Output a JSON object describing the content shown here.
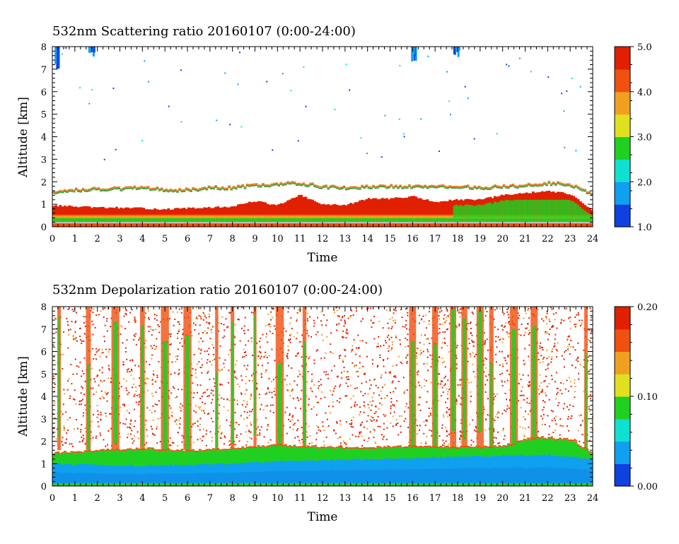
{
  "chart_data": [
    {
      "type": "heatmap",
      "title": "532nm Scattering ratio  20160107 (0:00-24:00)",
      "xlabel": "Time",
      "ylabel": "Altitude [km]",
      "xlim": [
        0,
        24
      ],
      "ylim": [
        0,
        8
      ],
      "x_ticks": [
        "0",
        "1",
        "2",
        "3",
        "4",
        "5",
        "6",
        "7",
        "8",
        "9",
        "10",
        "11",
        "12",
        "13",
        "14",
        "15",
        "16",
        "17",
        "18",
        "19",
        "20",
        "21",
        "22",
        "23",
        "24"
      ],
      "y_ticks": [
        "0",
        "1",
        "2",
        "3",
        "4",
        "5",
        "6",
        "7",
        "8"
      ],
      "colorbar": {
        "range": [
          1.0,
          5.0
        ],
        "tick_labels": [
          "1.0",
          "2.0",
          "3.0",
          "4.0",
          "5.0"
        ],
        "tick_values": [
          1.0,
          2.0,
          3.0,
          4.0,
          5.0
        ],
        "colors": [
          "#1040e0",
          "#10a0f0",
          "#10e0d0",
          "#20d020",
          "#e0e020",
          "#f0a020",
          "#f05010",
          "#e02000"
        ]
      },
      "features": {
        "boundary_layer_top_km": [
          [
            0,
            0.95
          ],
          [
            1,
            0.9
          ],
          [
            2,
            0.85
          ],
          [
            3,
            0.85
          ],
          [
            4,
            0.82
          ],
          [
            5,
            0.78
          ],
          [
            6,
            0.82
          ],
          [
            7,
            0.85
          ],
          [
            8,
            0.9
          ],
          [
            9,
            1.15
          ],
          [
            10,
            0.95
          ],
          [
            11,
            1.4
          ],
          [
            12,
            1.0
          ],
          [
            13,
            0.95
          ],
          [
            14,
            1.25
          ],
          [
            15,
            1.25
          ],
          [
            16,
            1.35
          ],
          [
            17,
            1.1
          ],
          [
            18,
            1.2
          ],
          [
            19,
            1.2
          ],
          [
            20,
            1.4
          ],
          [
            21,
            1.5
          ],
          [
            22,
            1.6
          ],
          [
            23,
            1.45
          ],
          [
            24,
            0.75
          ]
        ],
        "aerosol_layer_top_km": [
          [
            0,
            1.5
          ],
          [
            1,
            1.6
          ],
          [
            2,
            1.65
          ],
          [
            3,
            1.65
          ],
          [
            4,
            1.7
          ],
          [
            5,
            1.6
          ],
          [
            6,
            1.6
          ],
          [
            7,
            1.7
          ],
          [
            8,
            1.7
          ],
          [
            9,
            1.8
          ],
          [
            10,
            1.85
          ],
          [
            11,
            1.9
          ],
          [
            12,
            1.75
          ],
          [
            13,
            1.7
          ],
          [
            14,
            1.75
          ],
          [
            15,
            1.75
          ],
          [
            16,
            1.75
          ],
          [
            17,
            1.75
          ],
          [
            18,
            1.75
          ],
          [
            19,
            1.7
          ],
          [
            20,
            1.75
          ],
          [
            21,
            1.8
          ],
          [
            22,
            1.9
          ],
          [
            23,
            1.85
          ],
          [
            24,
            1.4
          ]
        ],
        "high_clouds": [
          [
            0.15,
            7.0
          ],
          [
            1.7,
            7.4
          ],
          [
            16.0,
            7.3
          ],
          [
            17.9,
            7.5
          ]
        ]
      }
    },
    {
      "type": "heatmap",
      "title": "532nm Depolarization ratio  20160107 (0:00-24:00)",
      "xlabel": "Time",
      "ylabel": "Altitude [km]",
      "xlim": [
        0,
        24
      ],
      "ylim": [
        0,
        8
      ],
      "x_ticks": [
        "0",
        "1",
        "2",
        "3",
        "4",
        "5",
        "6",
        "7",
        "8",
        "9",
        "10",
        "11",
        "12",
        "13",
        "14",
        "15",
        "16",
        "17",
        "18",
        "19",
        "20",
        "21",
        "22",
        "23",
        "24"
      ],
      "y_ticks": [
        "0",
        "1",
        "2",
        "3",
        "4",
        "5",
        "6",
        "7",
        "8"
      ],
      "colorbar": {
        "range": [
          0.0,
          0.2
        ],
        "tick_labels": [
          "0.00",
          "0.10",
          "0.20"
        ],
        "tick_values": [
          0.0,
          0.1,
          0.2
        ],
        "colors": [
          "#1040e0",
          "#10a0f0",
          "#10e0d0",
          "#20d020",
          "#e0e020",
          "#f0a020",
          "#f05010",
          "#e02000"
        ]
      },
      "features": {
        "low_depol_layer_top_km": [
          [
            0,
            1.0
          ],
          [
            2,
            0.95
          ],
          [
            4,
            0.9
          ],
          [
            6,
            0.95
          ],
          [
            8,
            1.0
          ],
          [
            10,
            1.1
          ],
          [
            12,
            1.15
          ],
          [
            14,
            1.2
          ],
          [
            16,
            1.25
          ],
          [
            18,
            1.3
          ],
          [
            20,
            1.35
          ],
          [
            22,
            1.4
          ],
          [
            24,
            1.2
          ]
        ],
        "depol_layer_top_km": [
          [
            0,
            1.5
          ],
          [
            2,
            1.6
          ],
          [
            4,
            1.7
          ],
          [
            6,
            1.6
          ],
          [
            8,
            1.7
          ],
          [
            10,
            1.85
          ],
          [
            12,
            1.75
          ],
          [
            14,
            1.75
          ],
          [
            16,
            1.8
          ],
          [
            18,
            1.75
          ],
          [
            20,
            1.8
          ],
          [
            21.5,
            2.2
          ],
          [
            23,
            2.1
          ],
          [
            24,
            1.5
          ]
        ],
        "vertical_streaks_hr": [
          0.3,
          1.6,
          2.8,
          4.0,
          5.0,
          6.0,
          7.3,
          8.0,
          9.0,
          10.1,
          11.2,
          16.0,
          17.0,
          17.8,
          18.3,
          19.0,
          19.5,
          20.5,
          21.4,
          23.7
        ]
      }
    }
  ]
}
